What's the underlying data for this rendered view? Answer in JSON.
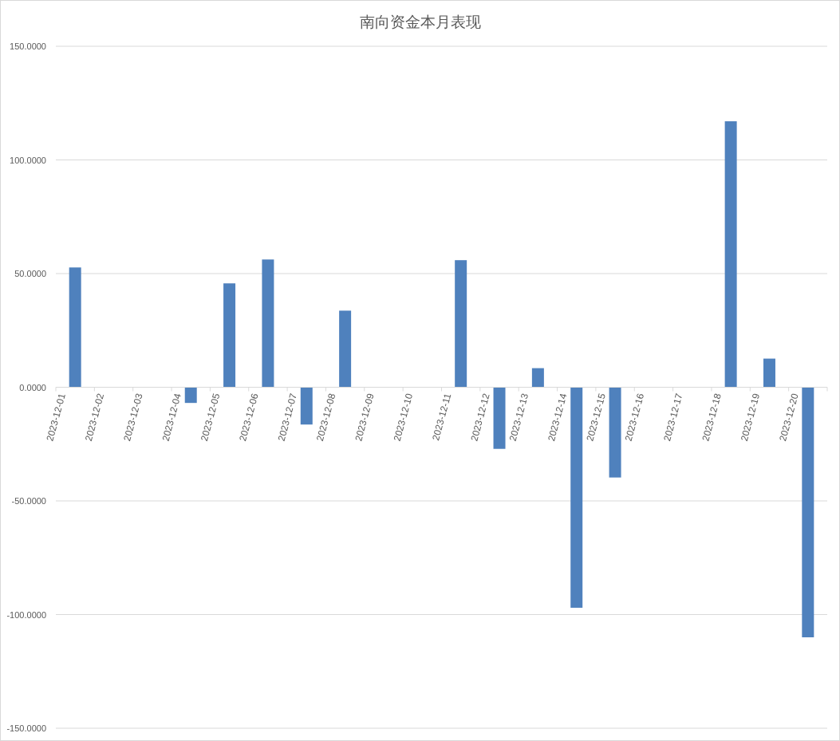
{
  "chart_data": {
    "type": "bar",
    "title": "南向资金本月表现",
    "categories": [
      "2023-12-01",
      "2023-12-02",
      "2023-12-03",
      "2023-12-04",
      "2023-12-05",
      "2023-12-06",
      "2023-12-07",
      "2023-12-08",
      "2023-12-09",
      "2023-12-10",
      "2023-12-11",
      "2023-12-12",
      "2023-12-13",
      "2023-12-14",
      "2023-12-15",
      "2023-12-16",
      "2023-12-17",
      "2023-12-18",
      "2023-12-19",
      "2023-12-20"
    ],
    "values": [
      52.7,
      null,
      null,
      -6.9,
      45.7,
      56.2,
      -16.4,
      33.7,
      null,
      null,
      55.9,
      -27.1,
      8.4,
      -97.0,
      -39.7,
      null,
      null,
      117.0,
      12.6,
      -110.0
    ],
    "color": "#4f81bd",
    "ylim": [
      -150,
      150
    ],
    "yticks": [
      {
        "value": -150,
        "label": "-150.0000"
      },
      {
        "value": -100,
        "label": "-100.0000"
      },
      {
        "value": -50,
        "label": "-50.0000"
      },
      {
        "value": 0,
        "label": "0.0000"
      },
      {
        "value": 50,
        "label": "50.0000"
      },
      {
        "value": 100,
        "label": "100.0000"
      },
      {
        "value": 150,
        "label": "150.0000"
      }
    ],
    "grid": "y"
  }
}
